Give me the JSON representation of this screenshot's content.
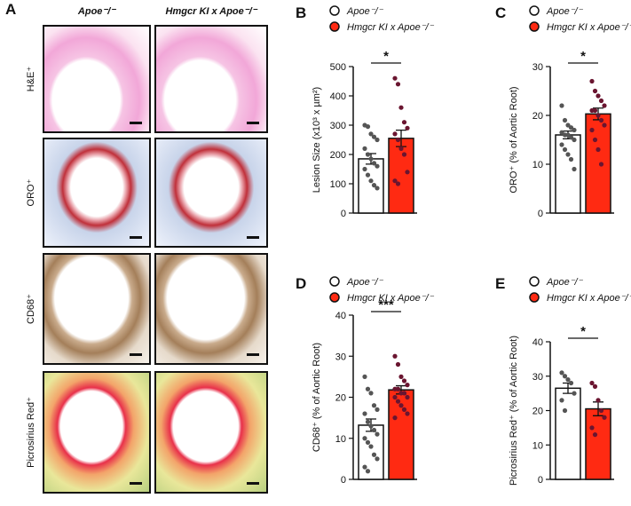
{
  "histology": {
    "label": "A",
    "columns": [
      "Apoe⁻/⁻",
      "Hmgcr KI x Apoe⁻/⁻"
    ],
    "rows": [
      "H&E⁺",
      "ORO⁺",
      "CD68⁺",
      "Picrosirius Red⁺"
    ]
  },
  "chart_data": [
    {
      "type": "bar",
      "label": "B",
      "y_label": "Lesion Size (x10³ x µm²)",
      "ylim": [
        0,
        500
      ],
      "yticks": [
        0,
        100,
        200,
        300,
        400,
        500
      ],
      "annotation": "*",
      "series": [
        {
          "name": "Apoe⁻/⁻",
          "color": "#ffffff",
          "values": [
            185
          ],
          "errors": [
            18
          ],
          "points": [
            300,
            295,
            270,
            260,
            250,
            220,
            200,
            185,
            170,
            160,
            150,
            130,
            110,
            95,
            85
          ]
        },
        {
          "name": "Hmgcr KI x Apoe⁻/⁻",
          "color": "#ff2a12",
          "values": [
            255
          ],
          "errors": [
            28
          ],
          "points": [
            460,
            440,
            360,
            310,
            290,
            270,
            250,
            220,
            200,
            140,
            110,
            100
          ]
        }
      ]
    },
    {
      "type": "bar",
      "label": "C",
      "y_label": "ORO⁺ (% of Aortic Root)",
      "ylim": [
        0,
        30
      ],
      "yticks": [
        0,
        10,
        20,
        30
      ],
      "annotation": "*",
      "series": [
        {
          "name": "Apoe⁻/⁻",
          "color": "#ffffff",
          "values": [
            16
          ],
          "errors": [
            0.8
          ],
          "points": [
            22,
            19,
            18,
            17.5,
            17,
            16.5,
            16,
            16,
            15.5,
            15,
            14,
            13,
            12,
            11,
            9
          ]
        },
        {
          "name": "Hmgcr KI x Apoe⁻/⁻",
          "color": "#ff2a12",
          "values": [
            20.3
          ],
          "errors": [
            1.2
          ],
          "points": [
            27,
            25,
            24,
            23,
            22,
            21,
            21,
            20,
            19,
            18,
            17,
            15,
            13,
            10
          ]
        }
      ]
    },
    {
      "type": "bar",
      "label": "D",
      "y_label": "CD68⁺ (% of Aortic Root)",
      "ylim": [
        0,
        40
      ],
      "yticks": [
        0,
        10,
        20,
        30,
        40
      ],
      "annotation": "***",
      "series": [
        {
          "name": "Apoe⁻/⁻",
          "color": "#ffffff",
          "values": [
            13.2
          ],
          "errors": [
            1.5
          ],
          "points": [
            25,
            22,
            21,
            18,
            17,
            16,
            14,
            13,
            12,
            11,
            10,
            9,
            8,
            6,
            5,
            3,
            2
          ]
        },
        {
          "name": "Hmgcr KI x Apoe⁻/⁻",
          "color": "#ff2a12",
          "values": [
            21.8
          ],
          "errors": [
            1
          ],
          "points": [
            30,
            28,
            25,
            24,
            23,
            22,
            22,
            21,
            21,
            20,
            20,
            19,
            18,
            17,
            16,
            15
          ]
        }
      ]
    },
    {
      "type": "bar",
      "label": "E",
      "y_label": "Picrosirius Red⁺ (% of Aortic Root)",
      "ylim": [
        0,
        40
      ],
      "yticks": [
        0,
        10,
        20,
        30,
        40
      ],
      "annotation": "*",
      "series": [
        {
          "name": "Apoe⁻/⁻",
          "color": "#ffffff",
          "values": [
            26.5
          ],
          "errors": [
            1.5
          ],
          "points": [
            31,
            30,
            29,
            28,
            25,
            23,
            20
          ]
        },
        {
          "name": "Hmgcr KI x Apoe⁻/⁻",
          "color": "#ff2a12",
          "values": [
            20.5
          ],
          "errors": [
            2
          ],
          "points": [
            28,
            27,
            23,
            20,
            18,
            15,
            13
          ]
        }
      ]
    }
  ]
}
